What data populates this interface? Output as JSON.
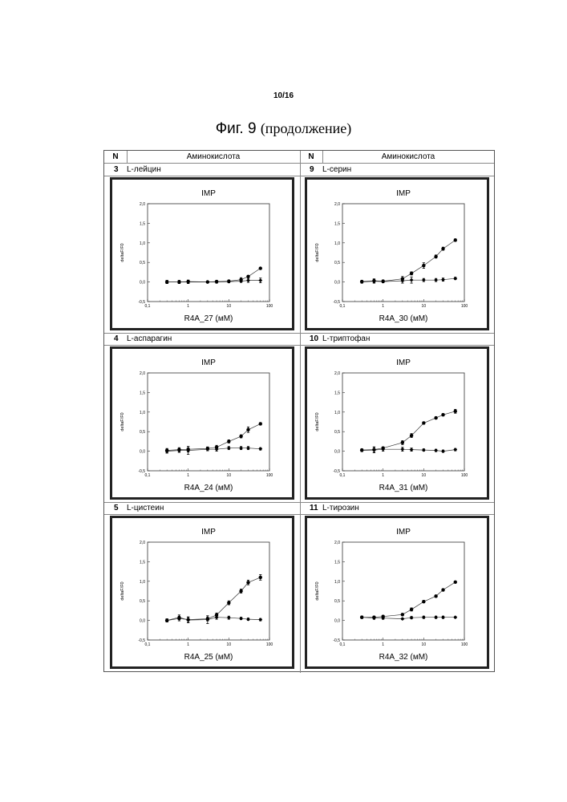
{
  "page_number": "10/16",
  "figure": {
    "label": "Фиг. 9",
    "subtitle": "(продолжение)"
  },
  "table": {
    "header": {
      "n": "N",
      "amino": "Аминокислота"
    },
    "rows": [
      {
        "num": "3",
        "name": "L-лейцин"
      },
      {
        "num": "9",
        "name": "L-серин"
      },
      {
        "num": "4",
        "name": "L-аспарагин"
      },
      {
        "num": "10",
        "name": "L-триптофан"
      },
      {
        "num": "5",
        "name": "L-цистеин"
      },
      {
        "num": "11",
        "name": "L-тирозин"
      }
    ]
  },
  "chart_data": [
    {
      "type": "scatter",
      "title": "IMP",
      "xlabel": "R4A_27 (мМ)",
      "ylabel": "deltaF/F0",
      "xscale": "log",
      "xlim": [
        0.1,
        100
      ],
      "ylim": [
        -0.5,
        2.0
      ],
      "xticks": [
        "0,1",
        "1",
        "10",
        "100"
      ],
      "yticks": [
        "-0,5",
        "0,0",
        "0,5",
        "1,0",
        "1,5",
        "2,0"
      ],
      "series": [
        {
          "x": [
            0.3,
            0.6,
            1,
            3,
            5,
            10,
            20,
            30,
            60
          ],
          "y": [
            0.0,
            0.0,
            0.01,
            0.0,
            0.01,
            0.02,
            0.06,
            0.14,
            0.35
          ],
          "err": [
            0.04,
            0.04,
            0.04,
            0.02,
            0.03,
            0.03,
            0.05,
            0.03,
            0.02
          ]
        },
        {
          "x": [
            0.3,
            0.6,
            1,
            3,
            5,
            10,
            20,
            30,
            60
          ],
          "y": [
            0.0,
            0.0,
            0.0,
            0.0,
            0.0,
            0.01,
            0.02,
            0.04,
            0.04
          ],
          "err": [
            0.04,
            0.04,
            0.04,
            0.02,
            0.03,
            0.03,
            0.03,
            0.05,
            0.06
          ]
        }
      ]
    },
    {
      "type": "scatter",
      "title": "IMP",
      "xlabel": "R4A_30 (мМ)",
      "ylabel": "deltaF/F0",
      "xscale": "log",
      "xlim": [
        0.1,
        100
      ],
      "ylim": [
        -0.5,
        2.0
      ],
      "xticks": [
        "0,1",
        "1",
        "10",
        "100"
      ],
      "yticks": [
        "-0,5",
        "0,0",
        "0,5",
        "1,0",
        "1,5",
        "2,0"
      ],
      "series": [
        {
          "x": [
            0.3,
            0.6,
            1,
            3,
            5,
            10,
            20,
            30,
            60
          ],
          "y": [
            0.01,
            0.03,
            0.02,
            0.08,
            0.22,
            0.42,
            0.65,
            0.85,
            1.07
          ],
          "err": [
            0.03,
            0.05,
            0.03,
            0.06,
            0.04,
            0.07,
            0.04,
            0.04,
            0.03
          ]
        },
        {
          "x": [
            0.3,
            0.6,
            1,
            3,
            5,
            10,
            20,
            30,
            60
          ],
          "y": [
            0.0,
            0.02,
            0.01,
            0.03,
            0.05,
            0.05,
            0.05,
            0.06,
            0.09
          ],
          "err": [
            0.03,
            0.05,
            0.03,
            0.06,
            0.08,
            0.04,
            0.04,
            0.04,
            0.03
          ]
        }
      ]
    },
    {
      "type": "scatter",
      "title": "IMP",
      "xlabel": "R4A_24 (мМ)",
      "ylabel": "deltaF/F0",
      "xscale": "log",
      "xlim": [
        0.1,
        100
      ],
      "ylim": [
        -0.5,
        2.0
      ],
      "xticks": [
        "0,1",
        "1",
        "10",
        "100"
      ],
      "yticks": [
        "-0,5",
        "0,0",
        "0,5",
        "1,0",
        "1,5",
        "2,0"
      ],
      "series": [
        {
          "x": [
            0.3,
            0.6,
            1,
            3,
            5,
            10,
            20,
            30,
            60
          ],
          "y": [
            0.02,
            0.04,
            0.05,
            0.07,
            0.1,
            0.25,
            0.38,
            0.55,
            0.7
          ],
          "err": [
            0.05,
            0.05,
            0.07,
            0.04,
            0.05,
            0.04,
            0.04,
            0.07,
            0.03
          ]
        },
        {
          "x": [
            0.3,
            0.6,
            1,
            3,
            5,
            10,
            20,
            30,
            60
          ],
          "y": [
            0.0,
            0.02,
            0.02,
            0.05,
            0.05,
            0.08,
            0.08,
            0.08,
            0.06
          ],
          "err": [
            0.05,
            0.05,
            0.1,
            0.04,
            0.05,
            0.04,
            0.04,
            0.04,
            0.03
          ]
        }
      ]
    },
    {
      "type": "scatter",
      "title": "IMP",
      "xlabel": "R4A_31 (мМ)",
      "ylabel": "deltaF/F0",
      "xscale": "log",
      "xlim": [
        0.1,
        100
      ],
      "ylim": [
        -0.5,
        2.0
      ],
      "xticks": [
        "0,1",
        "1",
        "10",
        "100"
      ],
      "yticks": [
        "-0,5",
        "0,0",
        "0,5",
        "1,0",
        "1,5",
        "2,0"
      ],
      "series": [
        {
          "x": [
            0.3,
            0.6,
            1,
            3,
            5,
            10,
            20,
            30,
            60
          ],
          "y": [
            0.03,
            0.04,
            0.08,
            0.22,
            0.4,
            0.72,
            0.85,
            0.93,
            1.02
          ],
          "err": [
            0.03,
            0.07,
            0.03,
            0.05,
            0.05,
            0.03,
            0.03,
            0.03,
            0.05
          ]
        },
        {
          "x": [
            0.3,
            0.6,
            1,
            3,
            5,
            10,
            20,
            30,
            60
          ],
          "y": [
            0.02,
            0.03,
            0.05,
            0.05,
            0.04,
            0.03,
            0.02,
            0.0,
            0.04
          ],
          "err": [
            0.03,
            0.07,
            0.05,
            0.05,
            0.04,
            0.03,
            0.03,
            0.03,
            0.03
          ]
        }
      ]
    },
    {
      "type": "scatter",
      "title": "IMP",
      "xlabel": "R4A_25 (мМ)",
      "ylabel": "deltaF/F0",
      "xscale": "log",
      "xlim": [
        0.1,
        100
      ],
      "ylim": [
        -0.5,
        2.0
      ],
      "xticks": [
        "0,1",
        "1",
        "10",
        "100"
      ],
      "yticks": [
        "-0,5",
        "0,0",
        "0,5",
        "1,0",
        "1,5",
        "2,0"
      ],
      "series": [
        {
          "x": [
            0.3,
            0.6,
            1,
            3,
            5,
            10,
            20,
            30,
            60
          ],
          "y": [
            0.0,
            0.05,
            0.02,
            0.04,
            0.14,
            0.45,
            0.75,
            0.97,
            1.1
          ],
          "err": [
            0.04,
            0.06,
            0.07,
            0.05,
            0.05,
            0.05,
            0.05,
            0.06,
            0.07
          ]
        },
        {
          "x": [
            0.3,
            0.6,
            1,
            3,
            5,
            10,
            20,
            30,
            60
          ],
          "y": [
            0.0,
            0.08,
            0.01,
            0.02,
            0.08,
            0.07,
            0.05,
            0.03,
            0.02
          ],
          "err": [
            0.04,
            0.06,
            0.07,
            0.1,
            0.05,
            0.04,
            0.03,
            0.03,
            0.03
          ]
        }
      ]
    },
    {
      "type": "scatter",
      "title": "IMP",
      "xlabel": "R4A_32 (мМ)",
      "ylabel": "deltaF/F0",
      "xscale": "log",
      "xlim": [
        0.1,
        100
      ],
      "ylim": [
        -0.5,
        2.0
      ],
      "xticks": [
        "0,1",
        "1",
        "10",
        "100"
      ],
      "yticks": [
        "-0,5",
        "0,0",
        "0,5",
        "1,0",
        "1,5",
        "2,0"
      ],
      "series": [
        {
          "x": [
            0.3,
            0.6,
            1,
            3,
            5,
            10,
            20,
            30,
            60
          ],
          "y": [
            0.08,
            0.08,
            0.1,
            0.15,
            0.28,
            0.48,
            0.62,
            0.78,
            0.98
          ],
          "err": [
            0.03,
            0.03,
            0.03,
            0.03,
            0.04,
            0.03,
            0.03,
            0.03,
            0.02
          ]
        },
        {
          "x": [
            0.3,
            0.6,
            1,
            3,
            5,
            10,
            20,
            30,
            60
          ],
          "y": [
            0.08,
            0.06,
            0.06,
            0.04,
            0.07,
            0.08,
            0.08,
            0.08,
            0.08
          ],
          "err": [
            0.03,
            0.03,
            0.03,
            0.02,
            0.03,
            0.03,
            0.03,
            0.03,
            0.02
          ]
        }
      ]
    }
  ]
}
